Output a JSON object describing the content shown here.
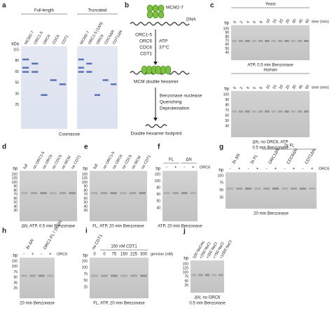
{
  "panels": [
    {
      "label": "a",
      "gels": [
        {
          "title": "Full-length",
          "unit": "kDa",
          "ladder": [
            115,
            80,
            65,
            50,
            30,
            25
          ],
          "lanes": [
            "MCM2-7",
            "ORC1-5",
            "ORC6",
            "CDC6",
            "CDT1"
          ]
        },
        {
          "title": "Truncated",
          "lanes": [
            "MCM2-7",
            "ORC1-5 (1ΔN)",
            "ORC6",
            "CDC6ΔN",
            "CDT1ΔN"
          ]
        }
      ],
      "caption": "Coomassie"
    },
    {
      "label": "c",
      "gels": [
        {
          "title": "Yeast",
          "unit": "bp",
          "ladder": [
            100,
            90,
            80,
            70,
            60,
            50,
            40
          ],
          "lanes": [
            "0",
            "2",
            "4",
            "6",
            "8",
            "10",
            "15",
            "20",
            "25",
            "30",
            "45",
            "60"
          ],
          "side": "time (min)",
          "caption": [
            "ATP, 0.5 min Benzonase"
          ]
        },
        {
          "title": "Human",
          "unit": "bp",
          "ladder": [
            100,
            90,
            80,
            70,
            60,
            50,
            40
          ],
          "lanes": [
            "0",
            "2",
            "4",
            "6",
            "8",
            "10",
            "15",
            "20",
            "25",
            "30",
            "45",
            "60"
          ],
          "side": "time (min)",
          "caption": [
            "ΔN, no ORC6, ATP",
            "0.5 min Benzonase"
          ]
        }
      ]
    },
    {
      "label": "d",
      "gels": [
        {
          "unit": "bp",
          "ladder": [
            150,
            125,
            100,
            90,
            80,
            70,
            60,
            50,
            40,
            30
          ],
          "lanes": [
            "full",
            "no ORC1-5",
            "no ORC6",
            "no CDC6",
            "no MCM",
            "no CDT1"
          ],
          "caption": [
            "ΔN, ATP, 0.5 min Benzonase"
          ]
        }
      ]
    },
    {
      "label": "e",
      "gels": [
        {
          "unit": "bp",
          "ladder": [
            150,
            125,
            100,
            90,
            80,
            70,
            60,
            50,
            40,
            30
          ],
          "lanes": [
            "full",
            "no ORC1-5",
            "no ORC6",
            "no CDC6",
            "no MCM",
            "no CDT1"
          ],
          "caption": [
            "FL, ATP, 20 min Benzonase"
          ]
        }
      ]
    },
    {
      "label": "f",
      "gels": [
        {
          "unit": "bp",
          "ladder": [
            150,
            100,
            80,
            60,
            50,
            40
          ],
          "groups": [
            "FL",
            "ΔN"
          ],
          "lanes": [
            "-",
            "+",
            "-",
            "+"
          ],
          "side": "ORC6",
          "caption": [
            "ATP, 20 min Benzonase"
          ]
        }
      ]
    },
    {
      "label": "g",
      "gels": [
        {
          "unit": "bp",
          "ladder": [
            100,
            75,
            50,
            35
          ],
          "super": "2x FL",
          "groups": [
            "3x ΔN",
            "3x FL",
            "ORC1ΔN",
            "CDC6ΔN",
            "CDT1ΔN"
          ],
          "lanes": [
            "-",
            "+",
            "-",
            "+",
            "-",
            "+",
            "-",
            "+",
            "-",
            "+"
          ],
          "side": "ORC6",
          "caption": [
            "20 min Benzonase"
          ]
        }
      ]
    },
    {
      "label": "h",
      "gels": [
        {
          "unit": "bp",
          "ladder": [
            150,
            100,
            75,
            50,
            35,
            25
          ],
          "groups": [
            "3x ΔN",
            "ORC1-FL / 2x ΔN"
          ],
          "lanes": [
            "-",
            "+",
            "-",
            "+"
          ],
          "side": "ORC6",
          "caption": [
            "20 min Benzonase"
          ]
        }
      ]
    },
    {
      "label": "i",
      "gels": [
        {
          "unit": "bp",
          "ladder": [
            150,
            100,
            75,
            50,
            25
          ],
          "groups": [
            "no CDT1",
            "150 nM CDT1"
          ],
          "lanes": [
            "0",
            "0",
            "75",
            "150",
            "225",
            "300"
          ],
          "side": "geminin (nM)",
          "caption": [
            "FL, ATP, 20 min Benzonase"
          ]
        }
      ]
    },
    {
      "label": "j",
      "gels": [
        {
          "unit": "bp",
          "ladder": [
            150,
            125,
            100,
            75,
            50,
            25
          ],
          "lanes": [
            "100 NaOAc",
            "+250 NaCl",
            "+350 NaCl",
            "+750 NaCl",
            "+1000 NaCl"
          ],
          "caption": [
            "ΔN, no ORC6",
            "0.5 min Benzonase"
          ]
        }
      ]
    }
  ],
  "diagram": {
    "label": "b",
    "mcm": "MCM2-7",
    "dna": "DNA",
    "factors": [
      "ORC1-5",
      "ORC6",
      "CDC6",
      "CDT1"
    ],
    "conditions": [
      "ATP",
      "37°C"
    ],
    "product": "MCM double hexamer",
    "steps": [
      "Benzonase nuclease",
      "Quenching",
      "Deproteination"
    ],
    "result": "Double hexamer footprint"
  }
}
